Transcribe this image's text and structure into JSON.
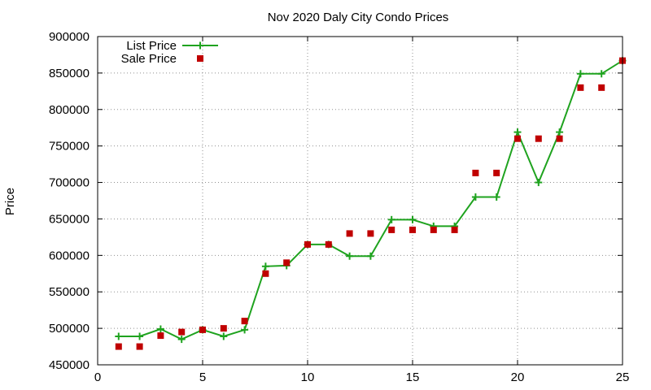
{
  "chart_data": {
    "type": "line",
    "title": "Nov 2020 Daly City Condo Prices",
    "xlabel": "",
    "ylabel": "Price",
    "xlim": [
      0,
      25
    ],
    "ylim": [
      450000,
      900000
    ],
    "xticks": [
      0,
      5,
      10,
      15,
      20,
      25
    ],
    "yticks": [
      450000,
      500000,
      550000,
      600000,
      650000,
      700000,
      750000,
      800000,
      850000,
      900000
    ],
    "grid": true,
    "legend": "top-left",
    "series": [
      {
        "name": "List Price",
        "style": "line+cross",
        "color": "#1fa31f",
        "x": [
          1,
          2,
          3,
          4,
          5,
          6,
          7,
          8,
          9,
          10,
          11,
          12,
          13,
          14,
          15,
          16,
          17,
          18,
          19,
          20,
          21,
          22,
          23,
          24,
          25
        ],
        "y": [
          489000,
          489000,
          499000,
          485000,
          498000,
          489000,
          498000,
          585000,
          586000,
          615000,
          615000,
          599000,
          599000,
          649000,
          649000,
          640000,
          640000,
          680000,
          680000,
          769000,
          700000,
          769000,
          849000,
          849000,
          867000
        ]
      },
      {
        "name": "Sale Price",
        "style": "square",
        "color": "#c00000",
        "x": [
          1,
          2,
          3,
          4,
          5,
          6,
          7,
          8,
          9,
          10,
          11,
          12,
          13,
          14,
          15,
          16,
          17,
          18,
          19,
          20,
          21,
          22,
          23,
          24,
          25
        ],
        "y": [
          475000,
          475000,
          490000,
          495000,
          498000,
          500000,
          510000,
          575000,
          590000,
          615000,
          615000,
          630000,
          630000,
          635000,
          635000,
          635000,
          635000,
          713000,
          713000,
          760000,
          760000,
          760000,
          830000,
          830000,
          867000
        ]
      }
    ]
  }
}
